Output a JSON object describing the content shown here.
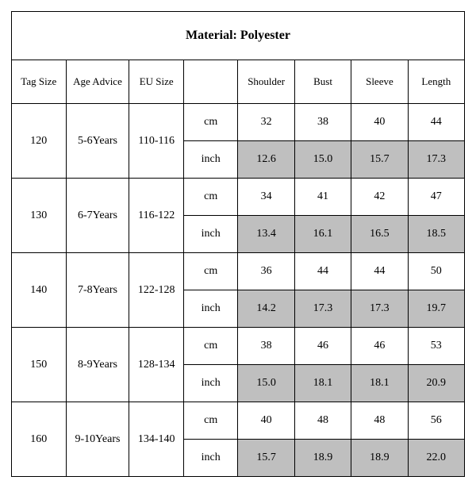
{
  "title": "Material: Polyester",
  "headers": {
    "tag": "Tag Size",
    "age": "Age Advice",
    "eu": "EU Size",
    "unit": "",
    "shoulder": "Shoulder",
    "bust": "Bust",
    "sleeve": "Sleeve",
    "length": "Length"
  },
  "units": {
    "cm": "cm",
    "inch": "inch"
  },
  "rows": [
    {
      "tag": "120",
      "age": "5-6Years",
      "eu": "110-116",
      "cm": {
        "shoulder": "32",
        "bust": "38",
        "sleeve": "40",
        "length": "44"
      },
      "inch": {
        "shoulder": "12.6",
        "bust": "15.0",
        "sleeve": "15.7",
        "length": "17.3"
      }
    },
    {
      "tag": "130",
      "age": "6-7Years",
      "eu": "116-122",
      "cm": {
        "shoulder": "34",
        "bust": "41",
        "sleeve": "42",
        "length": "47"
      },
      "inch": {
        "shoulder": "13.4",
        "bust": "16.1",
        "sleeve": "16.5",
        "length": "18.5"
      }
    },
    {
      "tag": "140",
      "age": "7-8Years",
      "eu": "122-128",
      "cm": {
        "shoulder": "36",
        "bust": "44",
        "sleeve": "44",
        "length": "50"
      },
      "inch": {
        "shoulder": "14.2",
        "bust": "17.3",
        "sleeve": "17.3",
        "length": "19.7"
      }
    },
    {
      "tag": "150",
      "age": "8-9Years",
      "eu": "128-134",
      "cm": {
        "shoulder": "38",
        "bust": "46",
        "sleeve": "46",
        "length": "53"
      },
      "inch": {
        "shoulder": "15.0",
        "bust": "18.1",
        "sleeve": "18.1",
        "length": "20.9"
      }
    },
    {
      "tag": "160",
      "age": "9-10Years",
      "eu": "134-140",
      "cm": {
        "shoulder": "40",
        "bust": "48",
        "sleeve": "48",
        "length": "56"
      },
      "inch": {
        "shoulder": "15.7",
        "bust": "18.9",
        "sleeve": "18.9",
        "length": "22.0"
      }
    }
  ],
  "style": {
    "shaded_bg": "#bfbfbf",
    "border_color": "#000000",
    "font_family": "Times New Roman",
    "title_fontsize": 16,
    "cell_fontsize": 14
  }
}
